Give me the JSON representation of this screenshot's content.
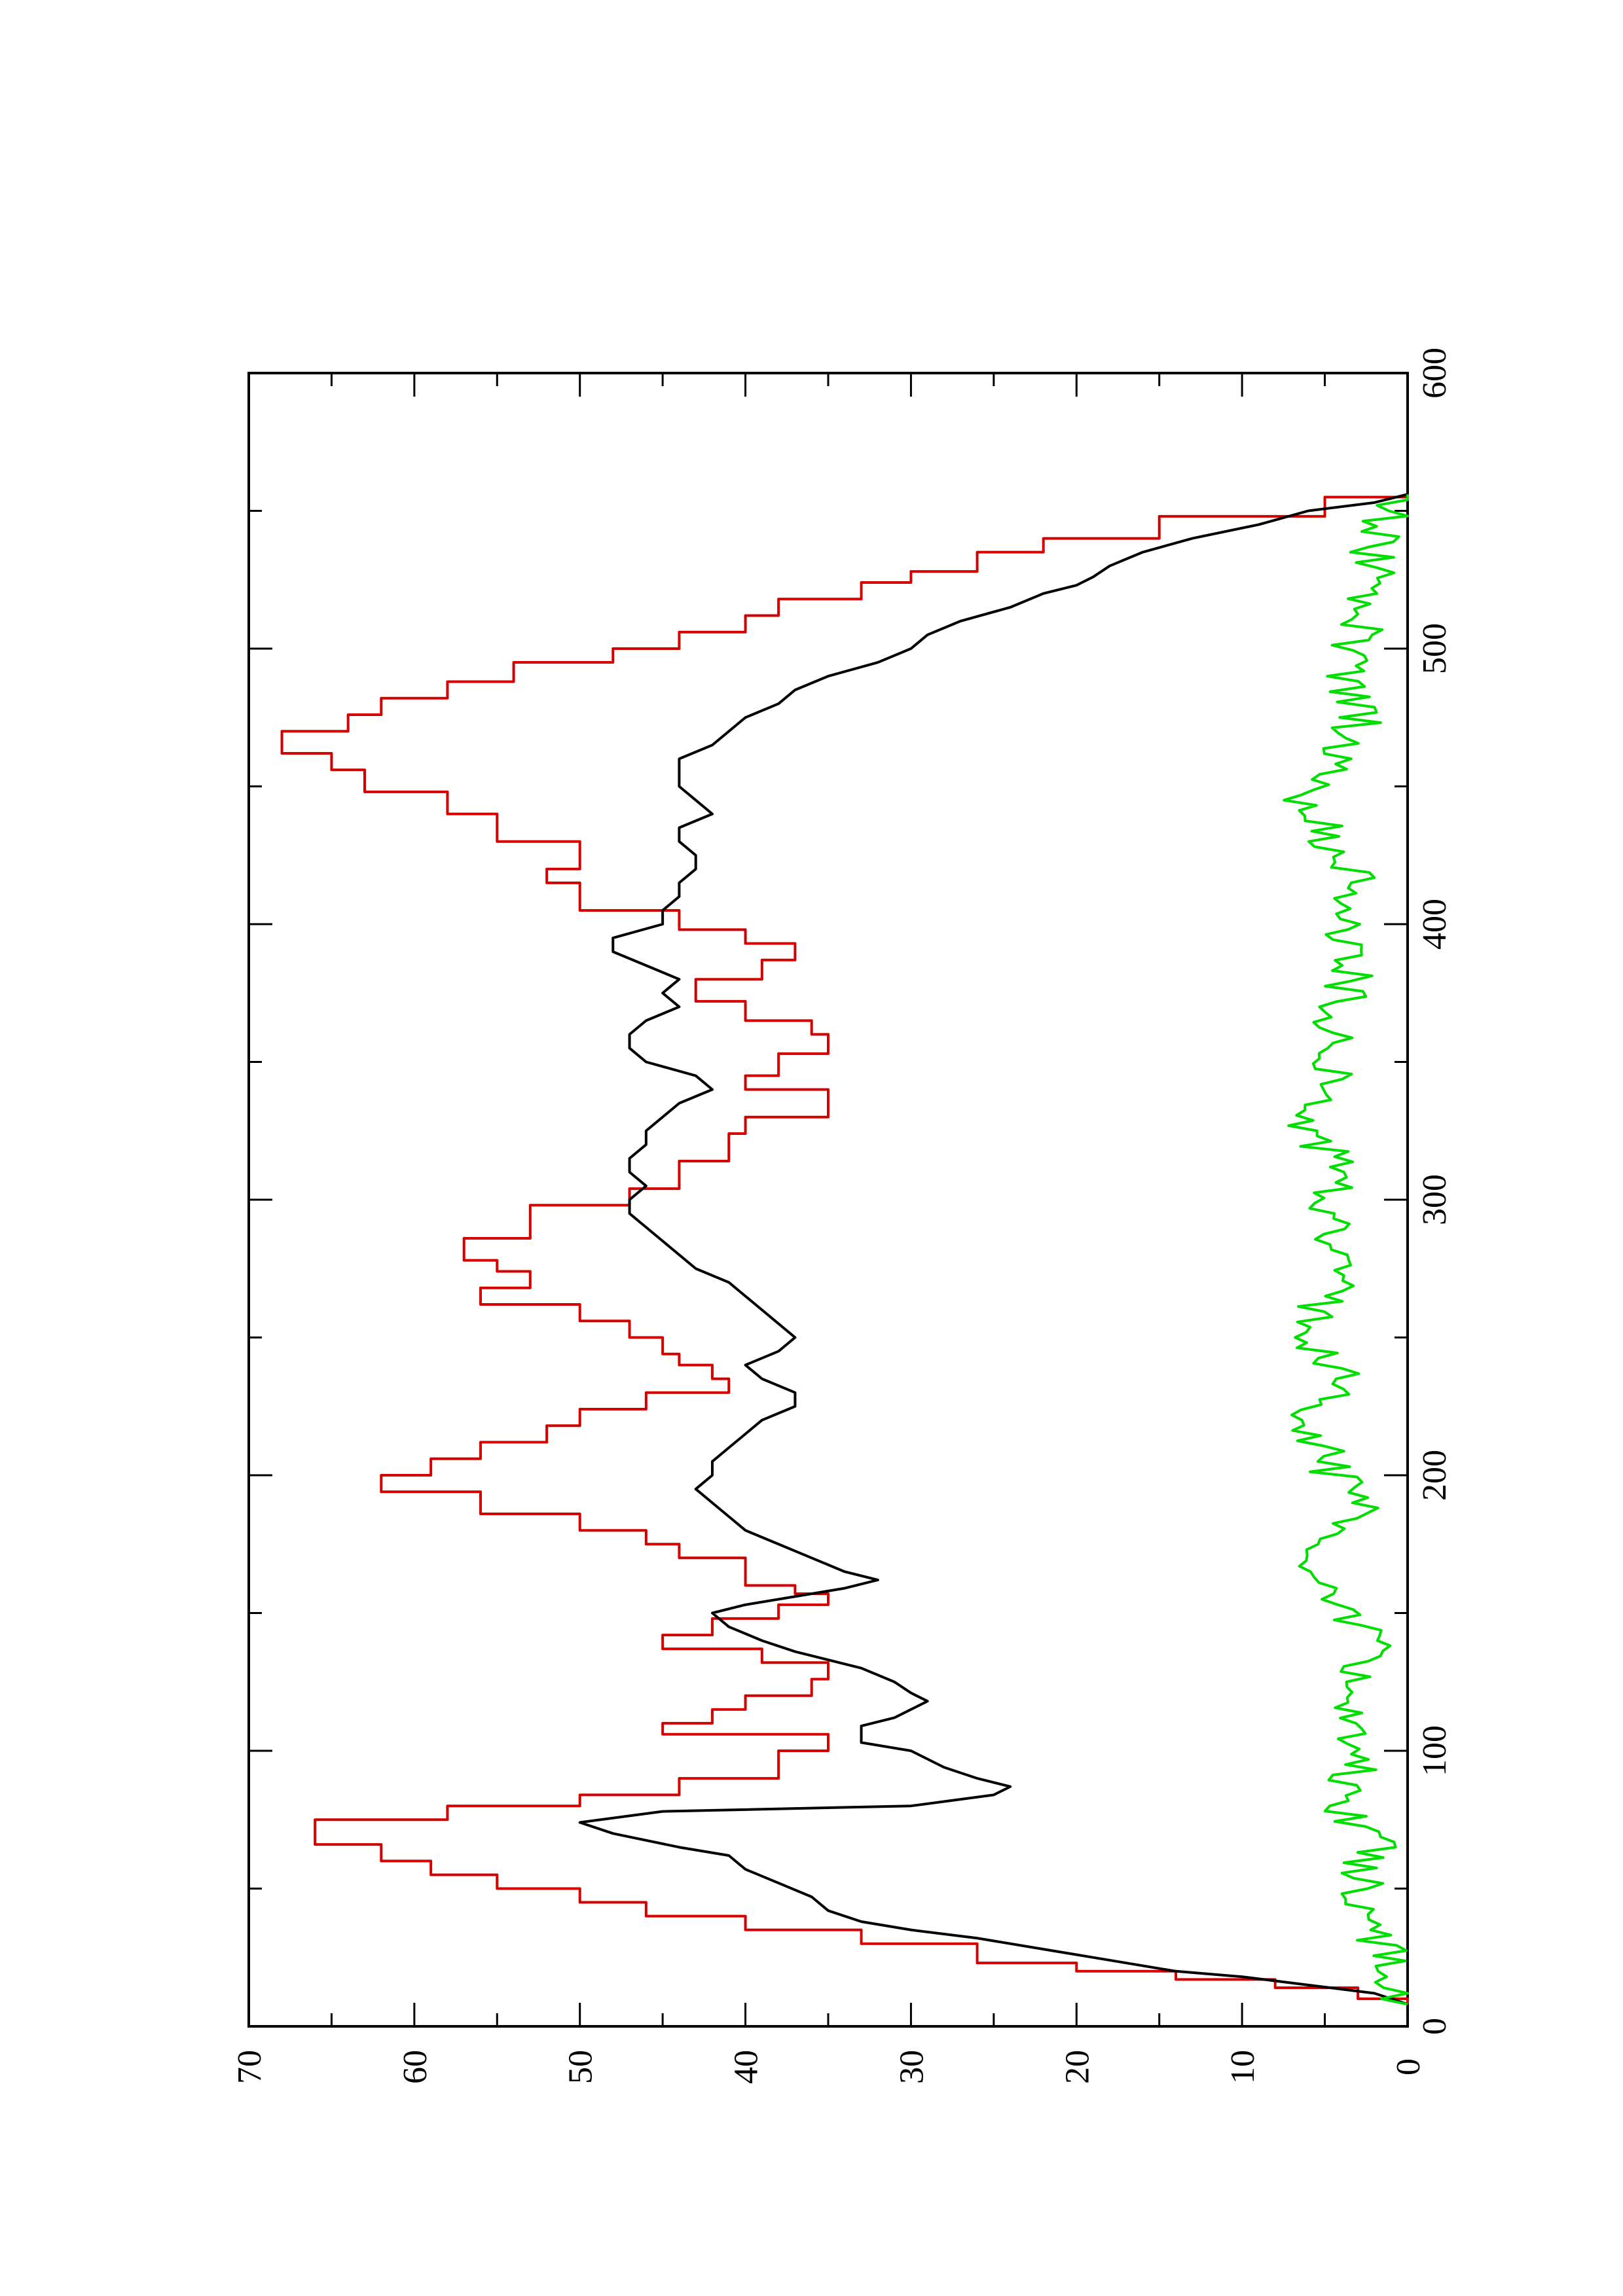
{
  "chart_data": {
    "type": "line",
    "orientation": "rotated-90-ccw",
    "title": "",
    "xlabel": "",
    "ylabel": "",
    "xlim": [
      0,
      600
    ],
    "ylim": [
      0,
      70
    ],
    "x_ticks": [
      "0",
      "100",
      "200",
      "300",
      "400",
      "500",
      "600"
    ],
    "y_ticks": [
      "0",
      "10",
      "20",
      "30",
      "40",
      "50",
      "60",
      "70"
    ],
    "grid": false,
    "legend": "none",
    "series": [
      {
        "color": "#d40000",
        "style": "step",
        "points": [
          [
            8,
            0
          ],
          [
            10,
            3
          ],
          [
            14,
            8
          ],
          [
            17,
            14
          ],
          [
            20,
            20
          ],
          [
            23,
            26
          ],
          [
            30,
            33
          ],
          [
            35,
            40
          ],
          [
            40,
            46
          ],
          [
            45,
            50
          ],
          [
            50,
            55
          ],
          [
            55,
            59
          ],
          [
            60,
            62
          ],
          [
            66,
            66
          ],
          [
            70,
            66
          ],
          [
            75,
            58
          ],
          [
            80,
            50
          ],
          [
            84,
            44
          ],
          [
            90,
            38
          ],
          [
            100,
            35
          ],
          [
            106,
            45
          ],
          [
            110,
            42
          ],
          [
            115,
            40
          ],
          [
            120,
            36
          ],
          [
            126,
            35
          ],
          [
            132,
            39
          ],
          [
            137,
            45
          ],
          [
            142,
            42
          ],
          [
            148,
            38
          ],
          [
            153,
            35
          ],
          [
            157,
            37
          ],
          [
            160,
            40
          ],
          [
            170,
            44
          ],
          [
            175,
            46
          ],
          [
            180,
            50
          ],
          [
            186,
            56
          ],
          [
            194,
            62
          ],
          [
            200,
            59
          ],
          [
            206,
            56
          ],
          [
            212,
            52
          ],
          [
            218,
            50
          ],
          [
            224,
            46
          ],
          [
            230,
            41
          ],
          [
            235,
            42
          ],
          [
            240,
            44
          ],
          [
            244,
            45
          ],
          [
            250,
            47
          ],
          [
            256,
            50
          ],
          [
            262,
            56
          ],
          [
            268,
            53
          ],
          [
            274,
            55
          ],
          [
            278,
            57
          ],
          [
            286,
            53
          ],
          [
            298,
            47
          ],
          [
            304,
            44
          ],
          [
            314,
            41
          ],
          [
            324,
            40
          ],
          [
            330,
            35
          ],
          [
            340,
            40
          ],
          [
            345,
            38
          ],
          [
            353,
            35
          ],
          [
            360,
            36
          ],
          [
            365,
            40
          ],
          [
            372,
            43
          ],
          [
            380,
            39
          ],
          [
            387,
            37
          ],
          [
            393,
            40
          ],
          [
            398,
            44
          ],
          [
            405,
            50
          ],
          [
            415,
            52
          ],
          [
            420,
            50
          ],
          [
            430,
            55
          ],
          [
            440,
            58
          ],
          [
            448,
            63
          ],
          [
            456,
            65
          ],
          [
            462,
            68
          ],
          [
            470,
            64
          ],
          [
            476,
            62
          ],
          [
            482,
            58
          ],
          [
            488,
            54
          ],
          [
            495,
            48
          ],
          [
            500,
            44
          ],
          [
            506,
            40
          ],
          [
            512,
            38
          ],
          [
            518,
            33
          ],
          [
            524,
            30
          ],
          [
            528,
            26
          ],
          [
            535,
            22
          ],
          [
            540,
            15
          ],
          [
            548,
            5
          ],
          [
            555,
            0
          ]
        ]
      },
      {
        "color": "#000000",
        "style": "line",
        "points": [
          [
            8,
            0
          ],
          [
            12,
            2
          ],
          [
            15,
            6
          ],
          [
            18,
            10
          ],
          [
            20,
            14
          ],
          [
            24,
            18
          ],
          [
            28,
            22
          ],
          [
            32,
            26
          ],
          [
            35,
            30
          ],
          [
            38,
            33
          ],
          [
            42,
            35
          ],
          [
            47,
            36
          ],
          [
            52,
            38
          ],
          [
            57,
            40
          ],
          [
            62,
            41
          ],
          [
            65,
            44
          ],
          [
            70,
            48
          ],
          [
            74,
            50
          ],
          [
            78,
            45
          ],
          [
            80,
            30
          ],
          [
            84,
            25
          ],
          [
            87,
            24
          ],
          [
            90,
            26
          ],
          [
            94,
            28
          ],
          [
            97,
            29
          ],
          [
            100,
            30
          ],
          [
            103,
            33
          ],
          [
            106,
            33
          ],
          [
            109,
            33
          ],
          [
            112,
            31
          ],
          [
            115,
            30
          ],
          [
            118,
            29
          ],
          [
            121,
            30
          ],
          [
            125,
            31
          ],
          [
            130,
            33
          ],
          [
            133,
            35
          ],
          [
            136,
            37
          ],
          [
            140,
            39
          ],
          [
            145,
            41
          ],
          [
            150,
            42
          ],
          [
            153,
            40
          ],
          [
            156,
            37
          ],
          [
            159,
            34
          ],
          [
            162,
            32
          ],
          [
            165,
            34
          ],
          [
            170,
            36
          ],
          [
            175,
            38
          ],
          [
            180,
            40
          ],
          [
            185,
            41
          ],
          [
            190,
            42
          ],
          [
            195,
            43
          ],
          [
            200,
            42
          ],
          [
            205,
            42
          ],
          [
            210,
            41
          ],
          [
            215,
            40
          ],
          [
            220,
            39
          ],
          [
            225,
            37
          ],
          [
            230,
            37
          ],
          [
            235,
            39
          ],
          [
            240,
            40
          ],
          [
            245,
            38
          ],
          [
            250,
            37
          ],
          [
            255,
            38
          ],
          [
            260,
            39
          ],
          [
            265,
            40
          ],
          [
            270,
            41
          ],
          [
            275,
            43
          ],
          [
            280,
            44
          ],
          [
            285,
            45
          ],
          [
            290,
            46
          ],
          [
            295,
            47
          ],
          [
            300,
            47
          ],
          [
            305,
            46
          ],
          [
            310,
            47
          ],
          [
            315,
            47
          ],
          [
            320,
            46
          ],
          [
            325,
            46
          ],
          [
            330,
            45
          ],
          [
            335,
            44
          ],
          [
            340,
            42
          ],
          [
            345,
            43
          ],
          [
            350,
            46
          ],
          [
            355,
            47
          ],
          [
            360,
            47
          ],
          [
            365,
            46
          ],
          [
            370,
            44
          ],
          [
            375,
            45
          ],
          [
            380,
            44
          ],
          [
            385,
            46
          ],
          [
            390,
            48
          ],
          [
            395,
            48
          ],
          [
            400,
            45
          ],
          [
            405,
            45
          ],
          [
            410,
            44
          ],
          [
            415,
            44
          ],
          [
            420,
            43
          ],
          [
            425,
            43
          ],
          [
            430,
            44
          ],
          [
            435,
            44
          ],
          [
            440,
            42
          ],
          [
            445,
            43
          ],
          [
            450,
            44
          ],
          [
            455,
            44
          ],
          [
            460,
            44
          ],
          [
            465,
            42
          ],
          [
            470,
            41
          ],
          [
            475,
            40
          ],
          [
            480,
            38
          ],
          [
            485,
            37
          ],
          [
            490,
            35
          ],
          [
            495,
            32
          ],
          [
            500,
            30
          ],
          [
            505,
            29
          ],
          [
            510,
            27
          ],
          [
            515,
            24
          ],
          [
            520,
            22
          ],
          [
            523,
            20
          ],
          [
            526,
            19
          ],
          [
            530,
            18
          ],
          [
            535,
            16
          ],
          [
            540,
            13
          ],
          [
            545,
            9
          ],
          [
            550,
            6
          ],
          [
            553,
            2
          ],
          [
            556,
            0
          ]
        ]
      },
      {
        "color": "#00dd00",
        "style": "noisy-line",
        "points": [
          [
            8,
            0
          ],
          [
            20,
            1
          ],
          [
            35,
            2
          ],
          [
            50,
            3
          ],
          [
            65,
            2
          ],
          [
            80,
            4
          ],
          [
            95,
            3
          ],
          [
            110,
            4
          ],
          [
            125,
            3
          ],
          [
            140,
            2
          ],
          [
            155,
            4
          ],
          [
            165,
            6
          ],
          [
            175,
            5
          ],
          [
            190,
            3
          ],
          [
            205,
            5
          ],
          [
            220,
            6
          ],
          [
            235,
            4
          ],
          [
            250,
            6
          ],
          [
            265,
            5
          ],
          [
            280,
            4
          ],
          [
            295,
            5
          ],
          [
            310,
            4
          ],
          [
            325,
            6
          ],
          [
            340,
            4
          ],
          [
            355,
            5
          ],
          [
            370,
            4
          ],
          [
            385,
            3
          ],
          [
            400,
            4
          ],
          [
            415,
            3
          ],
          [
            430,
            5
          ],
          [
            445,
            6
          ],
          [
            460,
            4
          ],
          [
            475,
            3
          ],
          [
            490,
            4
          ],
          [
            505,
            3
          ],
          [
            520,
            2
          ],
          [
            535,
            2
          ],
          [
            550,
            1
          ],
          [
            556,
            0
          ]
        ]
      }
    ]
  }
}
